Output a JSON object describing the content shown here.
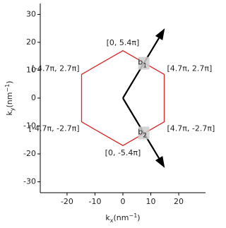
{
  "chart_data": {
    "type": "line",
    "xlabel": [
      "k",
      "x",
      "(nm",
      "−1",
      ")"
    ],
    "ylabel": [
      "k",
      "y",
      "(nm",
      "−1",
      ")"
    ],
    "xlim": [
      -29.6,
      29.6
    ],
    "ylim": [
      -33.9,
      33.9
    ],
    "xticks": [
      -20,
      -10,
      0,
      10,
      20
    ],
    "yticks": [
      -30,
      -20,
      -10,
      0,
      10,
      20,
      30
    ],
    "series": [
      {
        "color": "#d62728",
        "x": [
          0,
          14.8,
          14.8,
          0,
          -14.8,
          -14.8
        ],
        "values": [
          17,
          8.5,
          -8.5,
          -17,
          -8.5,
          8.5
        ],
        "point_labels": [
          "[0, 5.4π]",
          "[4.7π, 2.7π]",
          "[4.7π, -2.7π]",
          "[0, -5.4π]",
          "[-4.7π, -2.7π]",
          "[-4.7π, 2.7π]"
        ]
      }
    ],
    "vectors": [
      {
        "label": "b",
        "sub": "1",
        "x": 15,
        "y": 25,
        "color": "#000000"
      },
      {
        "label": "b",
        "sub": "2",
        "x": 15,
        "y": -25,
        "color": "#000000"
      }
    ]
  }
}
